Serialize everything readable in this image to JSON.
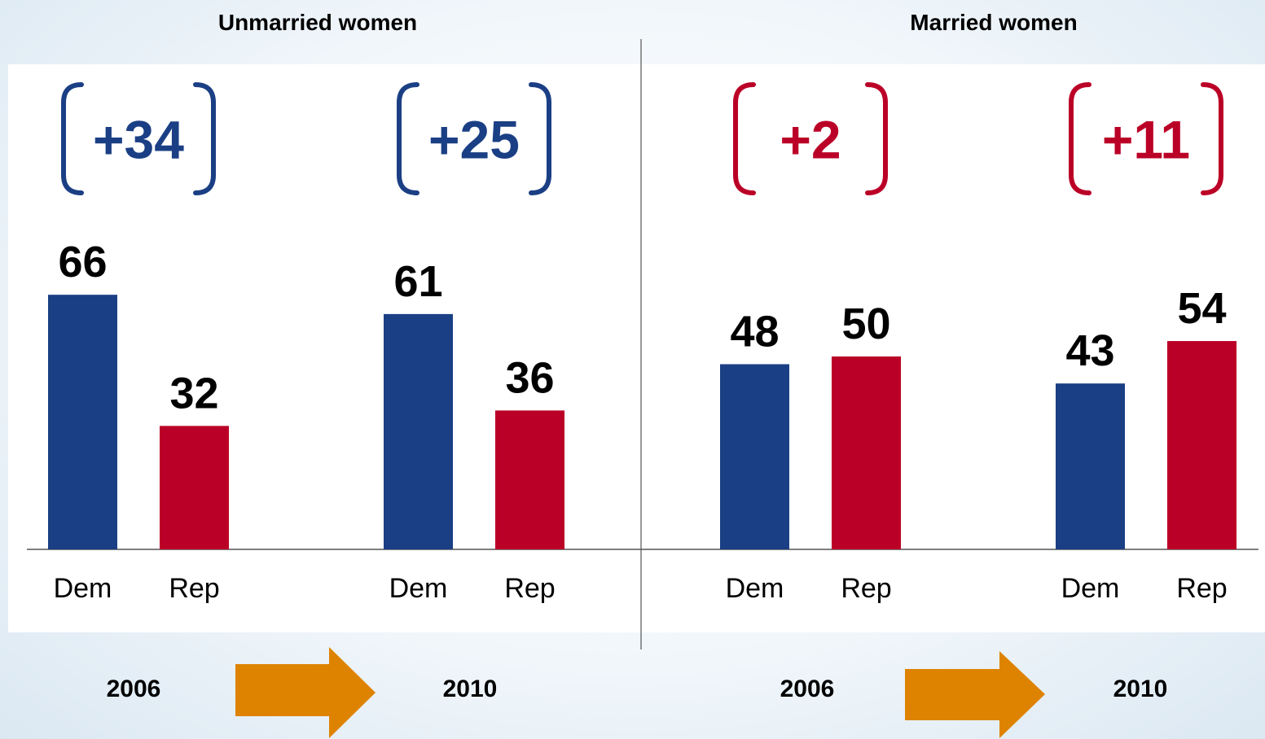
{
  "colors": {
    "dem": "#1b3f84",
    "rep": "#bb0027",
    "arrow": "#de8300",
    "axis": "#555555",
    "panel": "#ffffff"
  },
  "chart_data": [
    {
      "type": "bar",
      "title": "Unmarried women",
      "ylim": [
        0,
        75
      ],
      "groups": [
        {
          "year": "2006",
          "margin": "+34",
          "margin_party": "dem",
          "bars": [
            {
              "label": "Dem",
              "party": "dem",
              "value": 66
            },
            {
              "label": "Rep",
              "party": "rep",
              "value": 32
            }
          ]
        },
        {
          "year": "2010",
          "margin": "+25",
          "margin_party": "dem",
          "bars": [
            {
              "label": "Dem",
              "party": "dem",
              "value": 61
            },
            {
              "label": "Rep",
              "party": "rep",
              "value": 36
            }
          ]
        }
      ]
    },
    {
      "type": "bar",
      "title": "Married women",
      "ylim": [
        0,
        75
      ],
      "groups": [
        {
          "year": "2006",
          "margin": "+2",
          "margin_party": "rep",
          "bars": [
            {
              "label": "Dem",
              "party": "dem",
              "value": 48
            },
            {
              "label": "Rep",
              "party": "rep",
              "value": 50
            }
          ]
        },
        {
          "year": "2010",
          "margin": "+11",
          "margin_party": "rep",
          "bars": [
            {
              "label": "Dem",
              "party": "dem",
              "value": 43
            },
            {
              "label": "Rep",
              "party": "rep",
              "value": 54
            }
          ]
        }
      ]
    }
  ]
}
